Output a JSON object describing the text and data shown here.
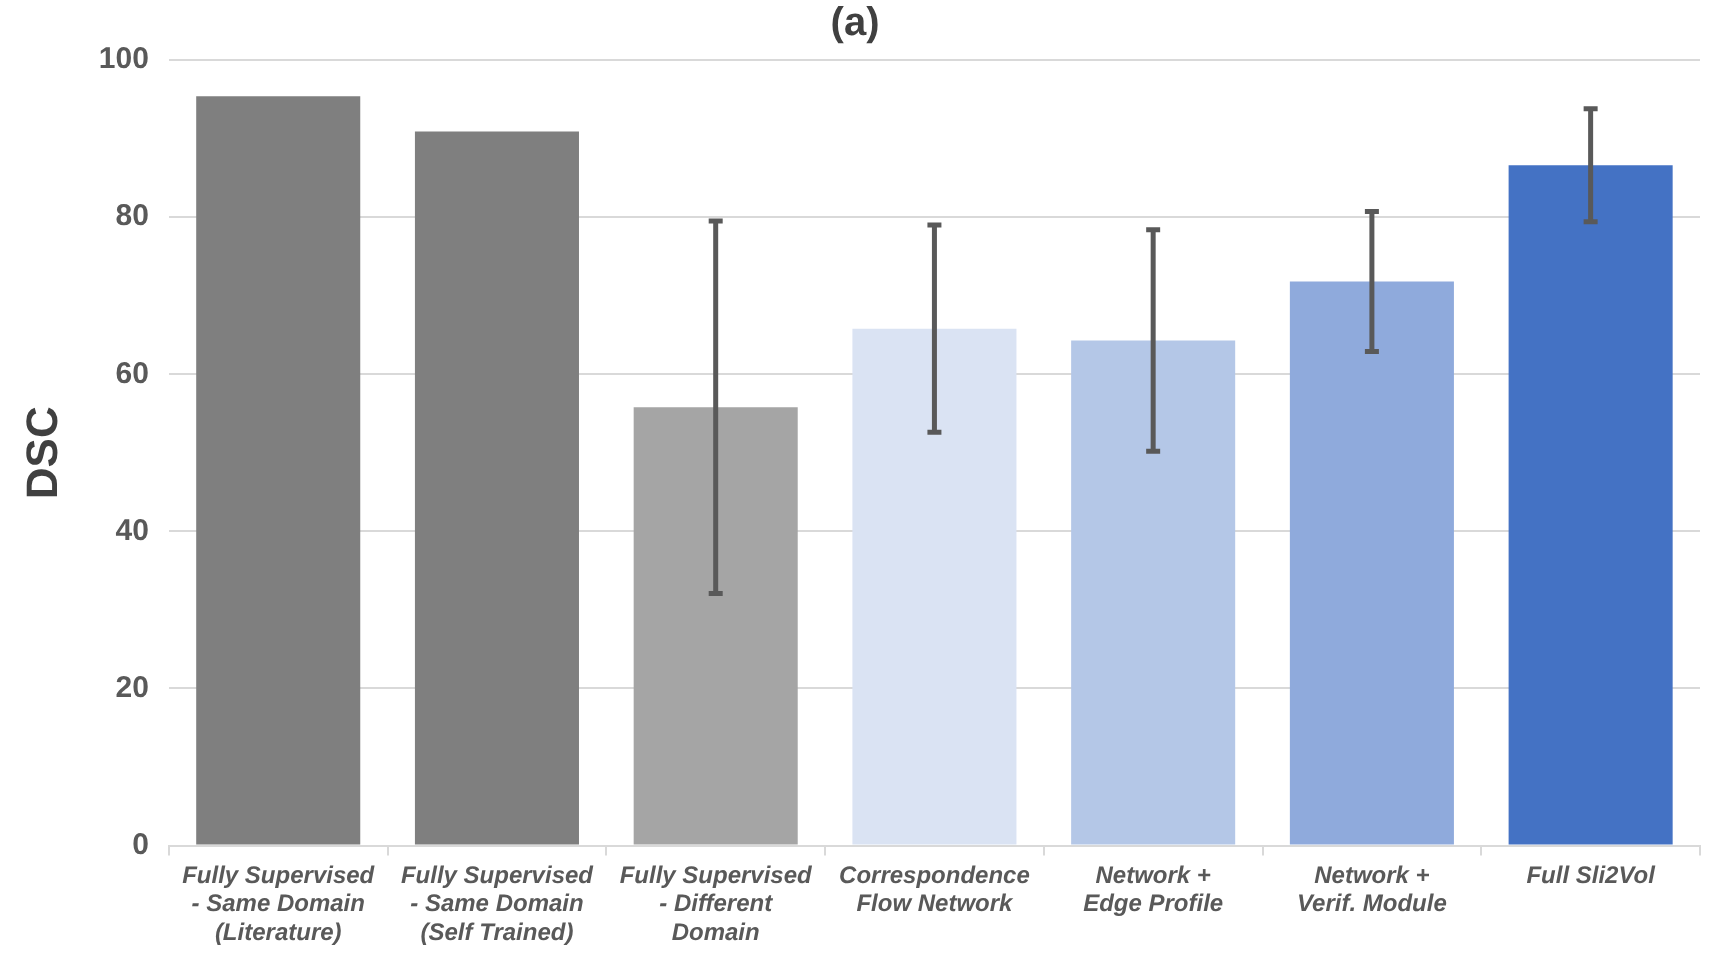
{
  "chart_data": {
    "type": "bar",
    "title": "(a)",
    "ylabel": "DSC",
    "categories": [
      "Fully Supervised\n- Same Domain\n(Literature)",
      "Fully Supervised\n- Same Domain\n(Self Trained)",
      "Fully Supervised\n- Different\nDomain",
      "Correspondence\nFlow Network",
      "Network +\nEdge Profile",
      "Network +\nVerif. Module",
      "Full Sli2Vol"
    ],
    "values": [
      95.4,
      90.9,
      55.8,
      65.8,
      64.3,
      71.8,
      86.6
    ],
    "errors": [
      null,
      null,
      23.7,
      13.2,
      14.1,
      8.9,
      7.2
    ],
    "colors": [
      "#7f7f7f",
      "#7f7f7f",
      "#a5a5a5",
      "#dae3f3",
      "#b4c7e7",
      "#8faadc",
      "#4472c4"
    ],
    "ylim": [
      0,
      100
    ],
    "yticks": [
      0,
      20,
      40,
      60,
      80,
      100
    ],
    "grid": "y",
    "legend": false
  }
}
